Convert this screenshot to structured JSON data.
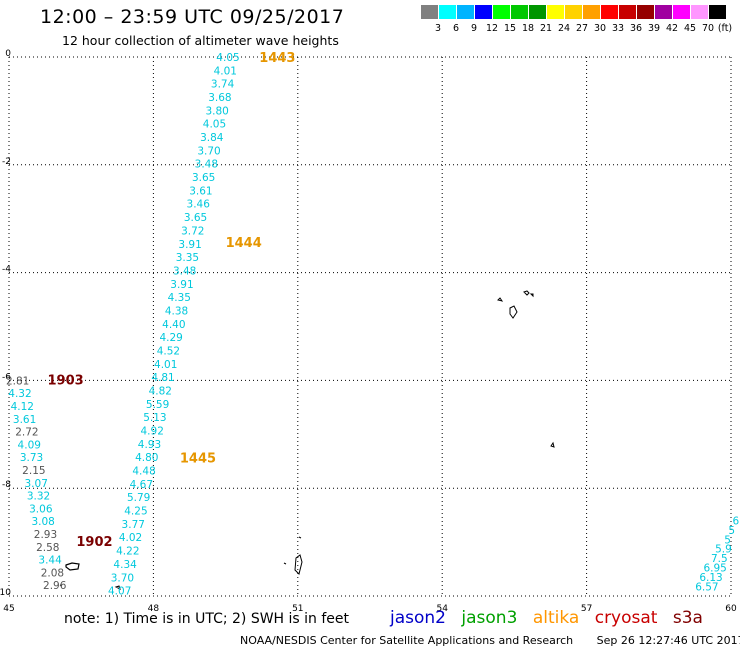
{
  "title": "12:00 – 23:59 UTC 09/25/2017",
  "subtitle": "12 hour collection of altimeter wave heights",
  "legend": {
    "unit": "(ft)",
    "colors": [
      "#808080",
      "#00ffff",
      "#00b4ff",
      "#0000ff",
      "#00ff00",
      "#00c800",
      "#009600",
      "#ffff00",
      "#ffd200",
      "#ffa000",
      "#ff0000",
      "#c80000",
      "#960000",
      "#a000a0",
      "#ff00ff",
      "#ff96ff",
      "#000000"
    ],
    "labels": [
      "3",
      "6",
      "9",
      "12",
      "15",
      "18",
      "21",
      "24",
      "27",
      "30",
      "33",
      "36",
      "39",
      "42",
      "45",
      "70"
    ]
  },
  "axes": {
    "x_ticks": [
      "45",
      "48",
      "51",
      "54",
      "57",
      "60"
    ],
    "y_ticks": [
      "0",
      "-2",
      "-4",
      "-6",
      "-8",
      "-10"
    ],
    "x_range": [
      45,
      60
    ],
    "y_range": [
      0,
      -10
    ]
  },
  "colors": {
    "jason2": "#0000c8",
    "jason3": "#00a000",
    "altika": "#ff9600",
    "cryosat": "#c80000",
    "s3a": "#800000",
    "cyan": "#00c8dc",
    "gray": "#555555",
    "pass_altika": "#e69600",
    "pass_s3a": "#7a0000"
  },
  "passes": [
    {
      "label": "1443",
      "lon": 50.2,
      "lat": -0.02,
      "color": "pass_altika"
    },
    {
      "label": "1444",
      "lon": 49.5,
      "lat": -3.45,
      "color": "pass_altika"
    },
    {
      "label": "1445",
      "lon": 48.55,
      "lat": -7.45,
      "color": "pass_altika"
    },
    {
      "label": "1903",
      "lon": 45.8,
      "lat": -6.0,
      "color": "pass_s3a"
    },
    {
      "label": "1902",
      "lon": 46.4,
      "lat": -9.0,
      "color": "pass_s3a"
    }
  ],
  "track_altika": {
    "color": "cyan",
    "values": [
      "4.05",
      "4.01",
      "3.74",
      "3.68",
      "3.80",
      "4.05",
      "3.84",
      "3.70",
      "3.48",
      "3.65",
      "3.61",
      "3.46",
      "3.65",
      "3.72",
      "3.91",
      "3.35",
      "3.48",
      "3.91",
      "4.35",
      "4.38",
      "4.40",
      "4.29",
      "4.52",
      "4.01",
      "4.81",
      "4.82",
      "5.59",
      "5.13",
      "4.92",
      "4.93",
      "4.80",
      "4.48",
      "4.67",
      "5.79",
      "4.25",
      "3.77",
      "4.02",
      "4.22",
      "4.34",
      "3.70",
      "4.07"
    ],
    "lon_start": 49.55,
    "lat_start": 0.0,
    "lon_end": 47.3,
    "lat_end": -9.9
  },
  "track_s3a": [
    {
      "v": "2.81",
      "c": "gray"
    },
    {
      "v": "4.32",
      "c": "cyan"
    },
    {
      "v": "4.12",
      "c": "cyan"
    },
    {
      "v": "3.61",
      "c": "cyan"
    },
    {
      "v": "2.72",
      "c": "gray"
    },
    {
      "v": "4.09",
      "c": "cyan"
    },
    {
      "v": "3.73",
      "c": "cyan"
    },
    {
      "v": "2.15",
      "c": "gray"
    },
    {
      "v": "3.07",
      "c": "cyan"
    },
    {
      "v": "3.32",
      "c": "cyan"
    },
    {
      "v": "3.06",
      "c": "cyan"
    },
    {
      "v": "3.08",
      "c": "cyan"
    },
    {
      "v": "2.93",
      "c": "gray"
    },
    {
      "v": "2.58",
      "c": "gray"
    },
    {
      "v": "3.44",
      "c": "cyan"
    },
    {
      "v": "2.08",
      "c": "gray"
    },
    {
      "v": "2.96",
      "c": "gray"
    }
  ],
  "track_s3a_geo": {
    "lon_start": 45.18,
    "lat_start": -6.0,
    "lon_end": 45.95,
    "lat_end": -9.8
  },
  "track_right": {
    "color": "cyan",
    "values": [
      "6",
      "5",
      "5",
      "5.9",
      "7.5",
      "6.95",
      "6.13",
      "6.57"
    ],
    "lon_start": 60.1,
    "lat_start": -8.6,
    "lon_end": 59.5,
    "lat_end": -9.82
  },
  "note": "note:  1) Time is in UTC;  2) SWH is in feet",
  "satellites": [
    "jason2",
    "jason3",
    "altika",
    "cryosat",
    "s3a"
  ],
  "footer": {
    "credit": "NOAA/NESDIS Center for Satellite Applications and Research",
    "timestamp": "Sep 26 12:27:46 UTC 2017"
  }
}
